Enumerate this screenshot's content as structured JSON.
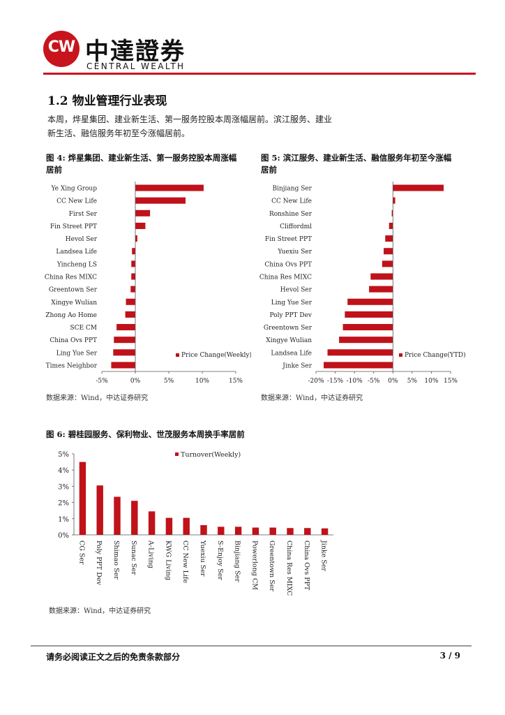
{
  "header": {
    "logo_mark": "CW",
    "company_cn": "中達證券",
    "company_en": "CENTRAL WEALTH"
  },
  "section_title": "1.2 物业管理行业表现",
  "paragraph": {
    "line1": "本周，烨星集团、建业新生活、第一服务控股本周涨幅居前。滨江服务、建业",
    "line2": "新生活、融信服务年初至今涨幅居前。"
  },
  "fig4": {
    "title_line1": "图 4: 烨星集团、建业新生活、第一服务控股本周涨幅",
    "title_line2": "居前",
    "source": "数据来源：Wind，中达证券研究"
  },
  "fig5": {
    "title_line1": "图 5: 滨江服务、建业新生活、融信服务年初至今涨幅",
    "title_line2": "居前",
    "source": "数据来源：Wind，中达证券研究"
  },
  "fig6": {
    "title": "图 6: 碧桂园服务、保利物业、世茂服务本周换手率居前",
    "source": "数据来源：Wind，中达证券研究"
  },
  "footer": {
    "left": "请务必阅读正文之后的免责条款部分",
    "page": "3 / 9"
  },
  "colors": {
    "accent": "#c8141c",
    "bar": "#c0121a"
  },
  "chart_data": [
    {
      "type": "bar",
      "orientation": "horizontal",
      "categories": [
        "Ye Xing Group",
        "CC New Life",
        "First Ser",
        "Fin Street PPT",
        "Hevol Ser",
        "Landsea Life",
        "Yincheng LS",
        "China Res MIXC",
        "Greentown Ser",
        "Xingye Wulian",
        "Zhong Ao Home",
        "SCE CM",
        "China Ovs PPT",
        "Ling Yue Ser",
        "Times Neighbor"
      ],
      "values": [
        10.2,
        7.5,
        2.2,
        1.5,
        0.3,
        -0.5,
        -0.6,
        -0.6,
        -0.7,
        -1.4,
        -1.5,
        -2.8,
        -3.2,
        -3.3,
        -3.6
      ],
      "series_name": "Price Change(Weekly)",
      "xlim": [
        -5,
        15
      ],
      "ticks": [
        -5,
        0,
        5,
        10,
        15
      ],
      "tick_labels": [
        "-5%",
        "0%",
        "5%",
        "10%",
        "15%"
      ]
    },
    {
      "type": "bar",
      "orientation": "horizontal",
      "categories": [
        "Binjiang Ser",
        "CC New Life",
        "Ronshine Ser",
        "Cliffordml",
        "Fin Street PPT",
        "Yuexiu Ser",
        "China Ovs PPT",
        "China Res MIXC",
        "Hevol Ser",
        "Ling Yue Ser",
        "Poly PPT Dev",
        "Greentown Ser",
        "Xingye Wulian",
        "Landsea Life",
        "Jinke Ser"
      ],
      "values": [
        13.2,
        0.6,
        -0.3,
        -1.0,
        -2.0,
        -2.4,
        -2.8,
        -5.8,
        -6.2,
        -11.8,
        -12.5,
        -13.0,
        -14.0,
        -17.0,
        -18.0
      ],
      "series_name": "Price Change(YTD)",
      "xlim": [
        -20,
        15
      ],
      "ticks": [
        -20,
        -15,
        -10,
        -5,
        0,
        5,
        10,
        15
      ],
      "tick_labels": [
        "-20%",
        "-15%",
        "-10%",
        "-5%",
        "0%",
        "5%",
        "10%",
        "15%"
      ]
    },
    {
      "type": "bar",
      "orientation": "vertical",
      "categories": [
        "CG Ser",
        "Poly PPT Dev",
        "Shimao Ser",
        "Sunac Ser",
        "A-Living",
        "KWG Living",
        "CC New Life",
        "Yuexiu Ser",
        "S-Enjoy Ser",
        "Binjiang Ser",
        "Powerlong CM",
        "Greentown Ser",
        "China Res MIXC",
        "China Ovs PPT",
        "Jinke Ser"
      ],
      "values": [
        4.5,
        3.05,
        2.35,
        2.1,
        1.45,
        1.05,
        1.05,
        0.6,
        0.5,
        0.5,
        0.45,
        0.45,
        0.42,
        0.42,
        0.4
      ],
      "series_name": "Turnover(Weekly)",
      "ylim": [
        0,
        5
      ],
      "ticks": [
        0,
        1,
        2,
        3,
        4,
        5
      ],
      "tick_labels": [
        "0%",
        "1%",
        "2%",
        "3%",
        "4%",
        "5%"
      ]
    }
  ]
}
